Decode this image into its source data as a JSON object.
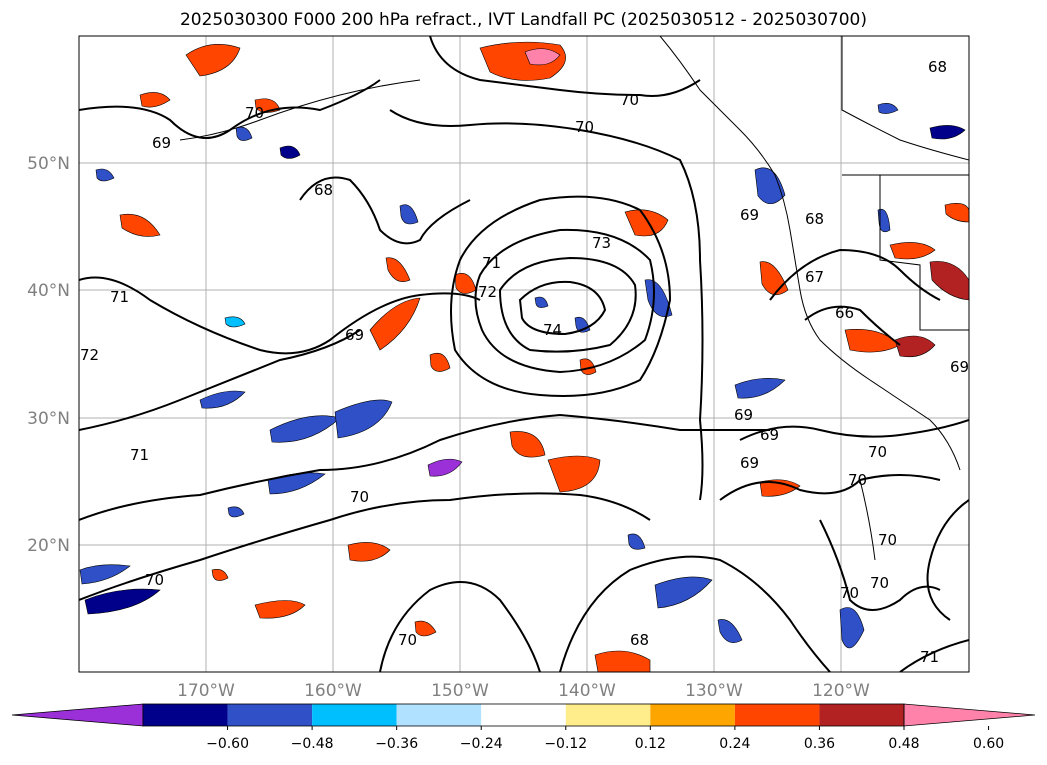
{
  "title": "2025030300 F000 200 hPa refract., IVT Landfall PC (2025030512 - 2025030700)",
  "lat_labels": [
    "50°N",
    "40°N",
    "30°N",
    "20°N"
  ],
  "lon_labels": [
    "170°W",
    "160°W",
    "150°W",
    "140°W",
    "130°W",
    "120°W"
  ],
  "colorbar": {
    "ticks": [
      "−0.60",
      "−0.48",
      "−0.36",
      "−0.24",
      "−0.12",
      "0.12",
      "0.24",
      "0.36",
      "0.48",
      "0.60"
    ],
    "colors": [
      "#9b30d9",
      "#00008b",
      "#3050c8",
      "#00bfff",
      "#b0e2ff",
      "#ffffff",
      "#ffec8b",
      "#ffa500",
      "#ff4500",
      "#b22222",
      "#ff82ab"
    ]
  },
  "contour_labels": [
    "69",
    "68",
    "70",
    "70",
    "71",
    "72",
    "73",
    "74",
    "69",
    "71",
    "72",
    "69",
    "68",
    "67",
    "66",
    "69",
    "69",
    "69",
    "69",
    "70",
    "70",
    "71",
    "70",
    "70",
    "70",
    "70",
    "70",
    "70",
    "70",
    "68",
    "71",
    "68"
  ],
  "map": {
    "lat_range": [
      10,
      60
    ],
    "lon_range": [
      -180,
      -110
    ],
    "gridlines": true
  }
}
